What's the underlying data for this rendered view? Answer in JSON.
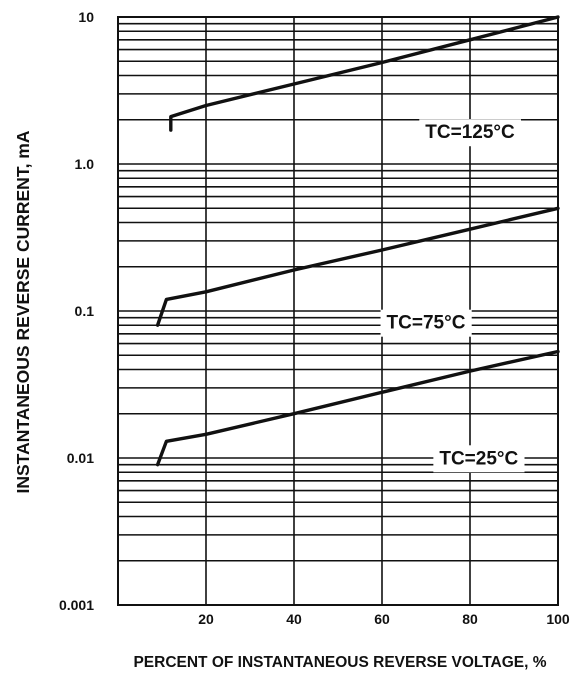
{
  "chart_data": {
    "type": "line",
    "xlabel": "PERCENT OF INSTANTANEOUS REVERSE VOLTAGE, %",
    "ylabel": "INSTANTANEOUS REVERSE CURRENT, mA",
    "yscale": "log",
    "xlim": [
      0,
      100
    ],
    "ylim": [
      0.001,
      10
    ],
    "x_ticks": [
      "20",
      "40",
      "60",
      "80",
      "100"
    ],
    "y_ticks": [
      "10",
      "1.0",
      "0.1",
      "0.01",
      "0.001"
    ],
    "grid": true,
    "series": [
      {
        "annotation": "TC=125°C",
        "points": [
          [
            12,
            1.7
          ],
          [
            12,
            2.1
          ],
          [
            20,
            2.5
          ],
          [
            40,
            3.5
          ],
          [
            60,
            4.9
          ],
          [
            80,
            7.0
          ],
          [
            100,
            10.0
          ]
        ]
      },
      {
        "annotation": "TC=75°C",
        "points": [
          [
            9,
            0.08
          ],
          [
            11,
            0.12
          ],
          [
            20,
            0.135
          ],
          [
            40,
            0.19
          ],
          [
            60,
            0.26
          ],
          [
            80,
            0.36
          ],
          [
            100,
            0.5
          ]
        ]
      },
      {
        "annotation": "TC=25°C",
        "points": [
          [
            9,
            0.009
          ],
          [
            11,
            0.013
          ],
          [
            20,
            0.0145
          ],
          [
            40,
            0.02
          ],
          [
            60,
            0.028
          ],
          [
            80,
            0.039
          ],
          [
            100,
            0.053
          ]
        ]
      }
    ]
  }
}
